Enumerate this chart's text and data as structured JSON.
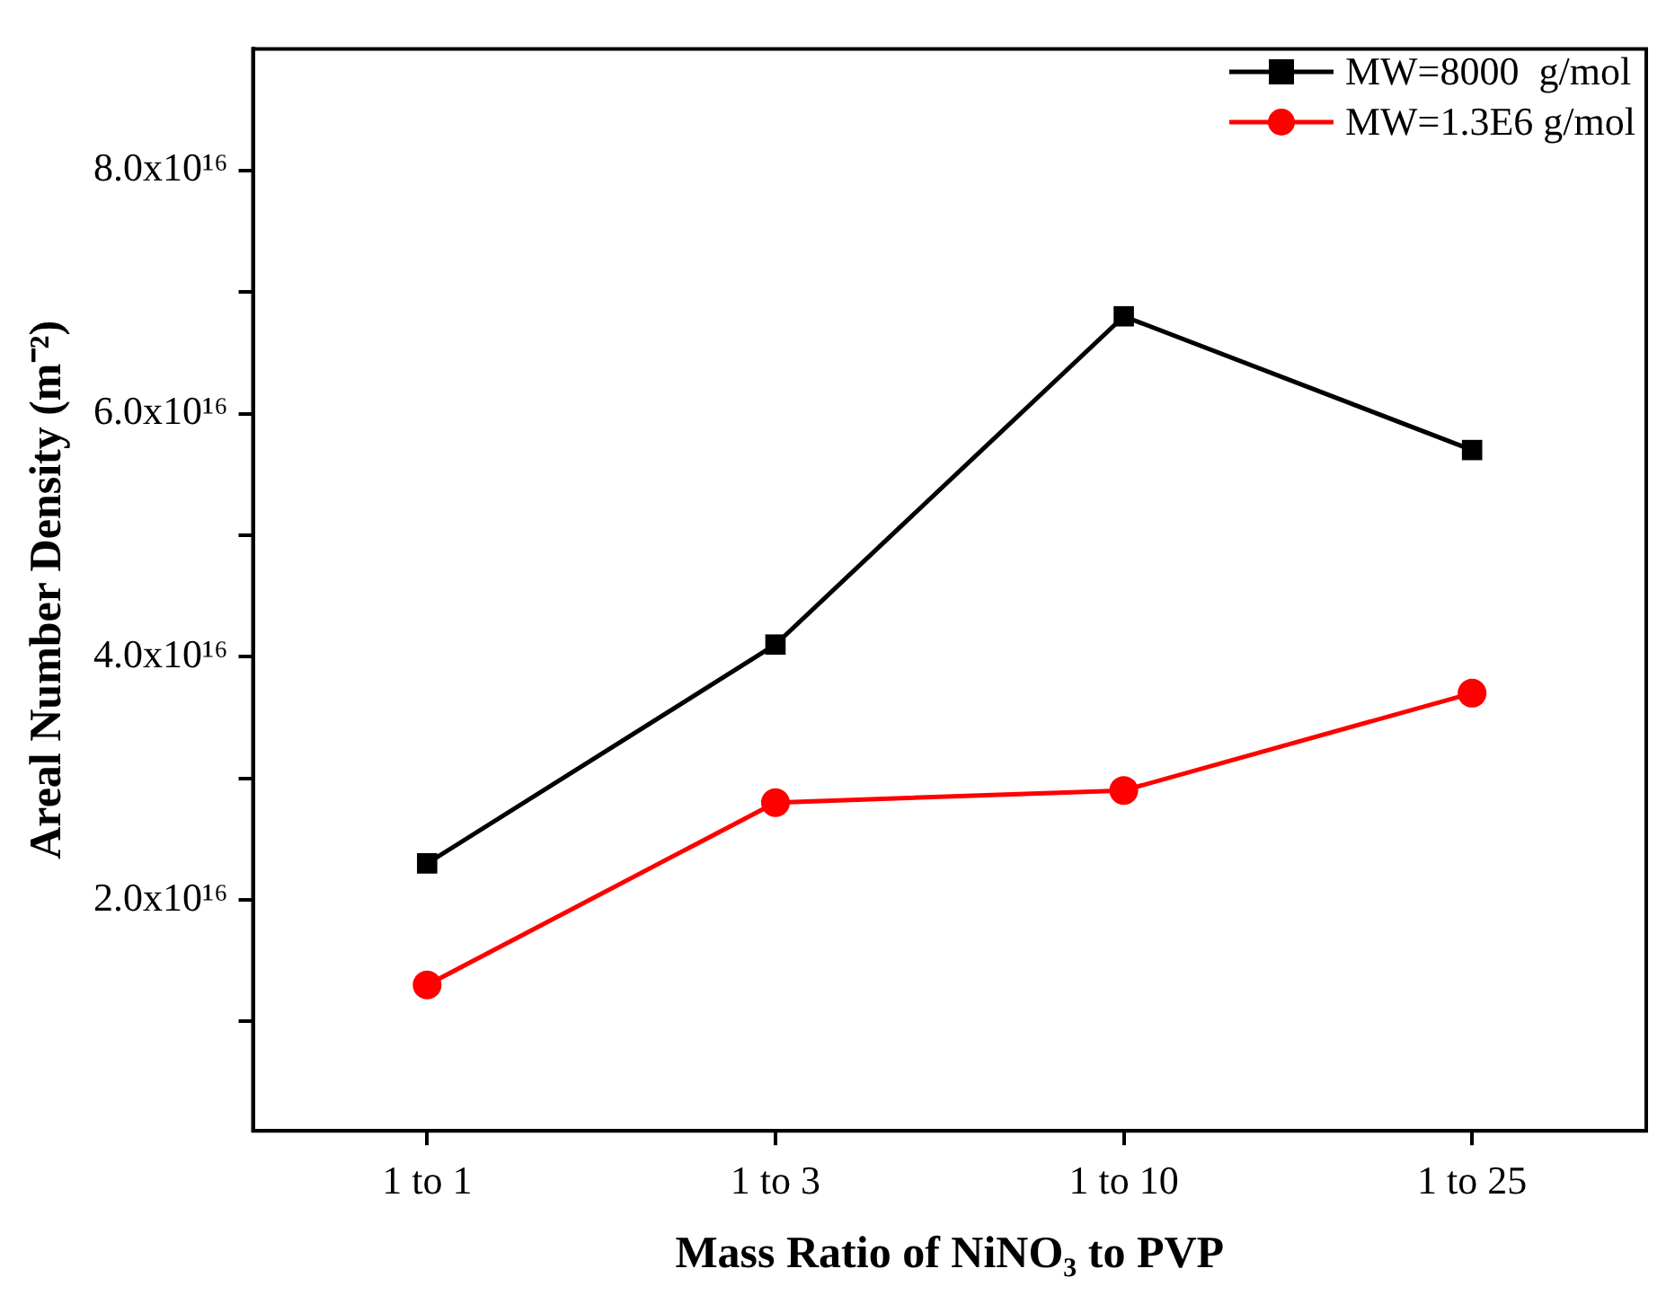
{
  "chart_data": {
    "type": "line",
    "xlabel": "Mass Ratio of NiNO₃ to PVP",
    "ylabel": "Areal Number Density (m⁻²)",
    "categories": [
      "1 to 1",
      "1 to 3",
      "1 to 10",
      "1 to 25"
    ],
    "series": [
      {
        "name": "MW=8000  g/mol",
        "color": "#000000",
        "marker": "square",
        "values": [
          2.3e+16,
          4.1e+16,
          6.8e+16,
          5.7e+16
        ]
      },
      {
        "name": "MW=1.3E6 g/mol",
        "color": "#ff0000",
        "marker": "circle",
        "values": [
          1.3e+16,
          2.8e+16,
          2.9e+16,
          3.7e+16
        ]
      }
    ],
    "ylim": [
      1000000000000000.0,
      9e+16
    ],
    "yticks": [
      {
        "value": 1e+16,
        "label": null
      },
      {
        "value": 2e+16,
        "label": "2.0x10¹⁶"
      },
      {
        "value": 3e+16,
        "label": null
      },
      {
        "value": 4e+16,
        "label": "4.0x10¹⁶"
      },
      {
        "value": 5e+16,
        "label": null
      },
      {
        "value": 6e+16,
        "label": "6.0x10¹⁶"
      },
      {
        "value": 7e+16,
        "label": null
      },
      {
        "value": 8e+16,
        "label": "8.0x10¹⁶"
      }
    ],
    "grid": false,
    "legend": "top right",
    "line_style": "solid"
  }
}
